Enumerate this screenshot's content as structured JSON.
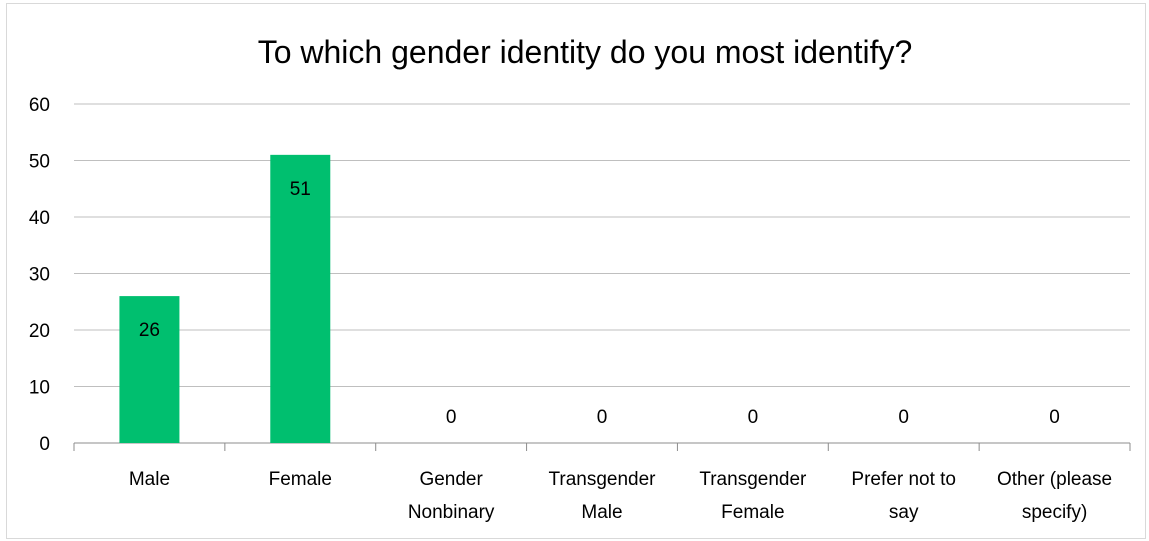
{
  "chart_data": {
    "type": "bar",
    "title": "To which gender identity do you most identify?",
    "categories": [
      [
        "Male"
      ],
      [
        "Female"
      ],
      [
        "Gender",
        "Nonbinary"
      ],
      [
        "Transgender",
        "Male"
      ],
      [
        "Transgender",
        "Female"
      ],
      [
        "Prefer not to",
        "say"
      ],
      [
        "Other (please",
        "specify)"
      ]
    ],
    "values": [
      26,
      51,
      0,
      0,
      0,
      0,
      0
    ],
    "ylim": [
      0,
      60
    ],
    "yticks": [
      0,
      10,
      20,
      30,
      40,
      50,
      60
    ],
    "xlabel": "",
    "ylabel": "",
    "grid": true,
    "data_labels": true,
    "bar_color": "#00bf6f",
    "gridline_color": "#bfbfbf",
    "axis_color": "#8c8c8c"
  }
}
